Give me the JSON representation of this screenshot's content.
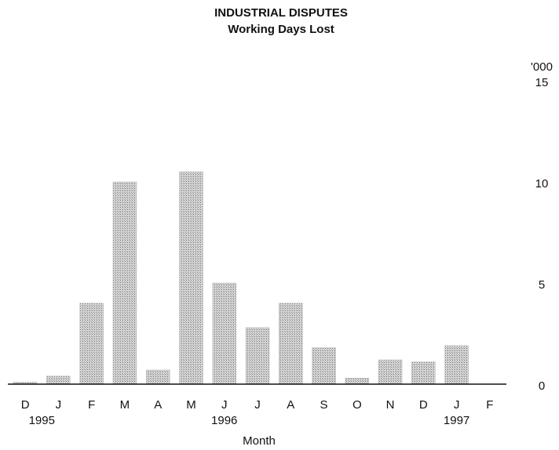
{
  "chart_data": {
    "type": "bar",
    "title": "INDUSTRIAL DISPUTES",
    "subtitle": "Working Days Lost",
    "x_label": "Month",
    "y_label": "'000",
    "categories": [
      "D",
      "J",
      "F",
      "M",
      "A",
      "M",
      "J",
      "J",
      "A",
      "S",
      "O",
      "N",
      "D",
      "J",
      "F"
    ],
    "values": [
      0.1,
      0.4,
      4,
      10,
      0.7,
      10.5,
      5,
      2.8,
      4,
      1.8,
      0.3,
      1.2,
      1.1,
      1.9,
      0
    ],
    "color": "#b8b8b8",
    "ylim": [
      0,
      15
    ],
    "yticks": [
      0,
      5,
      10,
      15
    ],
    "grid": false,
    "year_labels": [
      {
        "text": "1995",
        "category_index": 0.5
      },
      {
        "text": "1996",
        "category_index": 6
      },
      {
        "text": "1997",
        "category_index": 13
      }
    ]
  }
}
